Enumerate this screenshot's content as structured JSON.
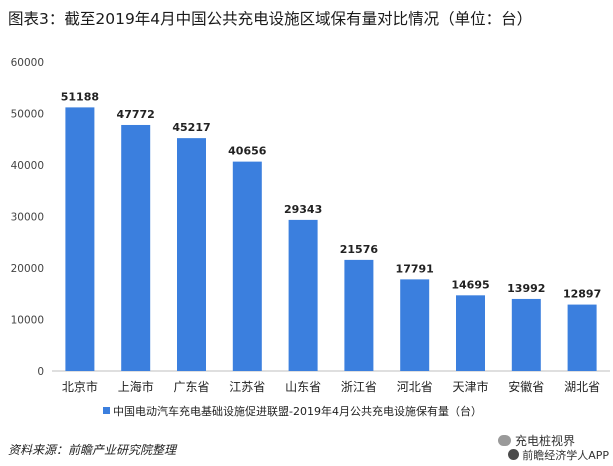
{
  "chart_data": {
    "type": "bar",
    "title": "图表3：截至2019年4月中国公共充电设施区域保有量对比情况（单位：台）",
    "categories": [
      "北京市",
      "上海市",
      "广东省",
      "江苏省",
      "山东省",
      "浙江省",
      "河北省",
      "天津市",
      "安徽省",
      "湖北省"
    ],
    "series": [
      {
        "name": "中国电动汽车充电基础设施促进联盟-2019年4月公共充电设施保有量（台）",
        "values": [
          51188,
          47772,
          45217,
          40656,
          29343,
          21576,
          17791,
          14695,
          13992,
          12897
        ]
      }
    ],
    "yticks": [
      0,
      10000,
      20000,
      30000,
      40000,
      50000,
      60000
    ],
    "ylim": [
      0,
      60000
    ],
    "grid": false,
    "legend_position": "bottom",
    "bar_color": "#3b7fde",
    "data_labels": true
  },
  "footer": {
    "source": "资料来源：前瞻产业研究院整理",
    "brand_line1": "充电桩视界",
    "brand_line2": "前瞻经济学人APP"
  },
  "icons": {
    "wechat": "wechat-icon",
    "brand_logo": "logo-icon"
  }
}
